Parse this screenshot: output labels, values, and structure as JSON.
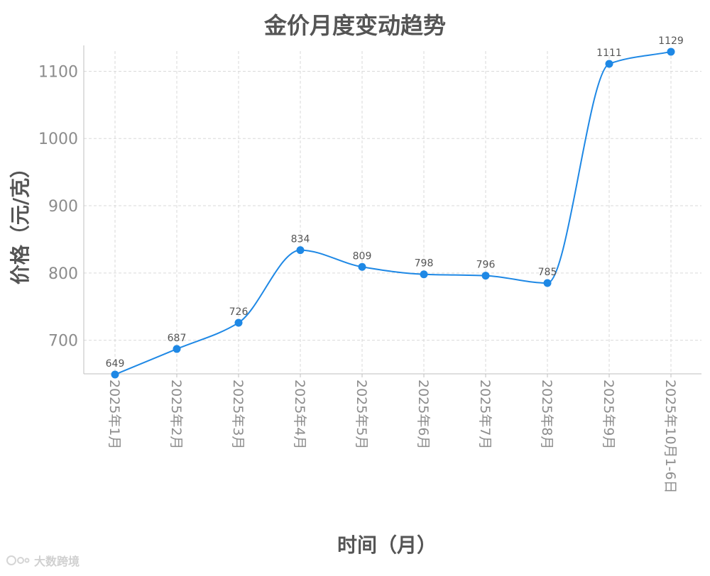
{
  "chart_data": {
    "type": "line",
    "title": "金价月度变动趋势",
    "xlabel": "时间（月）",
    "ylabel": "价格（元/克）",
    "categories": [
      "2025年1月",
      "2025年2月",
      "2025年3月",
      "2025年4月",
      "2025年5月",
      "2025年6月",
      "2025年7月",
      "2025年8月",
      "2025年9月",
      "2025年10月1-6日"
    ],
    "series": [
      {
        "values": [
          649,
          687,
          726,
          834,
          809,
          798,
          796,
          785,
          1111,
          1129
        ]
      }
    ],
    "ylim": [
      650,
      1130
    ],
    "yticks": [
      700,
      800,
      900,
      1000,
      1100
    ],
    "grid": true,
    "smooth": true,
    "line_color": "#1e88e5"
  },
  "watermark": {
    "text": "大数跨境"
  }
}
